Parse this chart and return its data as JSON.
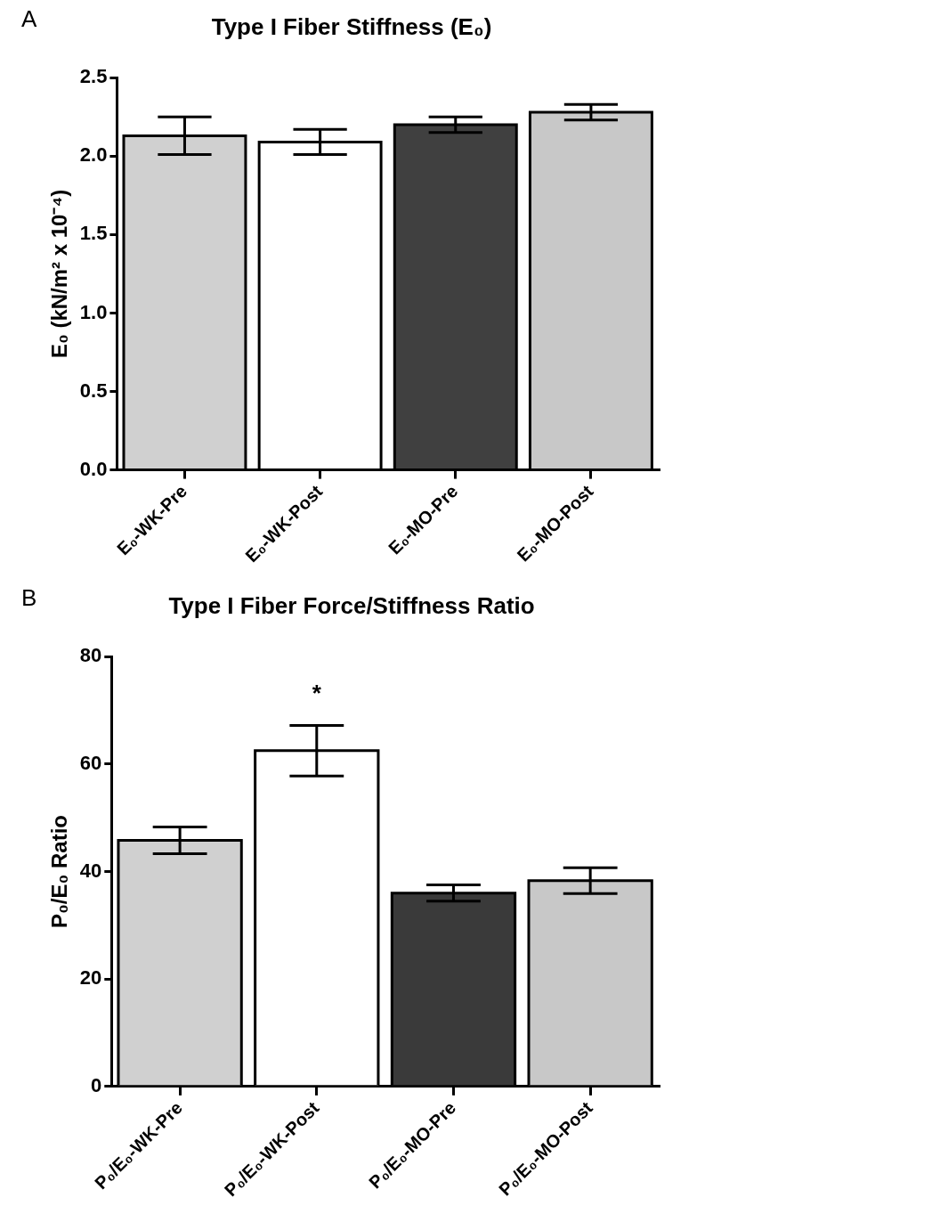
{
  "chart_data": [
    {
      "type": "bar",
      "title": "Type I Fiber Stiffness (E₀)",
      "ylabel": "E₀ (kN/m² x 10⁻⁴)",
      "categories": [
        "E₀-WK-Pre",
        "E₀-WK-Post",
        "E₀-MO-Pre",
        "E₀-MO-Post"
      ],
      "values": [
        2.13,
        2.09,
        2.2,
        2.28
      ],
      "errors": [
        0.12,
        0.08,
        0.05,
        0.05
      ],
      "colors": [
        "#d0d0d0",
        "#ffffff",
        "#404040",
        "#c8c8c8"
      ],
      "ylim": [
        0,
        2.5
      ],
      "yticks": [
        {
          "value": 0,
          "label": "0.0"
        },
        0.5,
        {
          "value": 1,
          "label": "1.0"
        },
        1.5,
        {
          "value": 2,
          "label": "2.0"
        },
        2.5
      ],
      "annotations": [
        "A"
      ]
    },
    {
      "type": "bar",
      "title": "Type I Fiber Force/Stiffness Ratio",
      "ylabel": "P₀/E₀ Ratio",
      "categories": [
        "P₀/E₀-WK-Pre",
        "P₀/E₀-WK-Post",
        "P₀/E₀-MO-Pre",
        "P₀/E₀-MO-Post"
      ],
      "values": [
        45.8,
        62.5,
        36,
        38.3
      ],
      "errors": [
        2.5,
        4.7,
        1.5,
        2.4
      ],
      "colors": [
        "#d0d0d0",
        "#ffffff",
        "#3a3a3a",
        "#c8c8c8"
      ],
      "ylim": [
        0,
        80
      ],
      "yticks": [
        0,
        20,
        40,
        60,
        80
      ],
      "annotations": [
        "B",
        {
          "text": "*",
          "x": "P₀/E₀-WK-Post",
          "y": 67.2
        }
      ]
    }
  ]
}
